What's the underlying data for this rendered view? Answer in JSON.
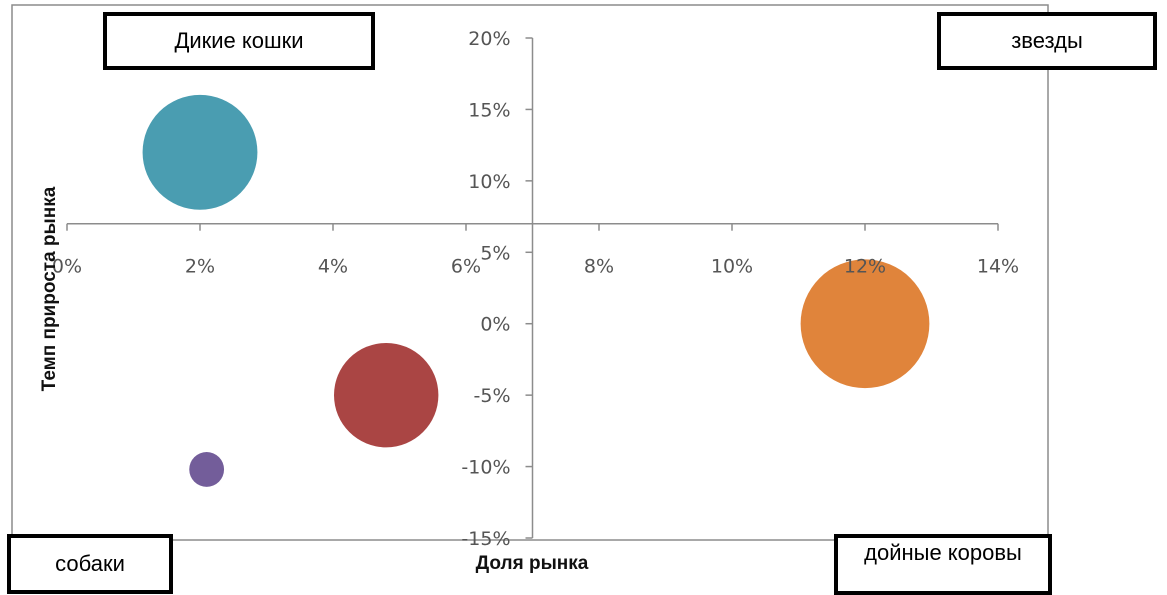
{
  "chart_data": {
    "type": "bubble",
    "xlabel": "Доля рынка",
    "ylabel": "Темп прироста рынка",
    "xlim": [
      0,
      14
    ],
    "ylim": [
      -15,
      20
    ],
    "x_ticks": [
      "0%",
      "2%",
      "4%",
      "6%",
      "8%",
      "10%",
      "12%",
      "14%"
    ],
    "y_ticks": [
      "20%",
      "15%",
      "10%",
      "5%",
      "0%",
      "-5%",
      "-10%",
      "-15%"
    ],
    "points": [
      {
        "x": 2.0,
        "y": 12,
        "size": 3.3,
        "color": "#4a9db1"
      },
      {
        "x": 12.0,
        "y": 0,
        "size": 3.7,
        "color": "#e0843b"
      },
      {
        "x": 4.8,
        "y": -5,
        "size": 3.0,
        "color": "#aa4544"
      },
      {
        "x": 2.1,
        "y": -10.2,
        "size": 1.0,
        "color": "#735d9a"
      }
    ]
  },
  "quadrants": {
    "top_left": "Дикие кошки",
    "top_right": "звезды",
    "bottom_left": "собаки",
    "bottom_right": "дойные коровы"
  },
  "colors": {
    "axis": "#8c8c8c",
    "plot_border": "#8c8c8c",
    "tick_text": "#555555"
  }
}
